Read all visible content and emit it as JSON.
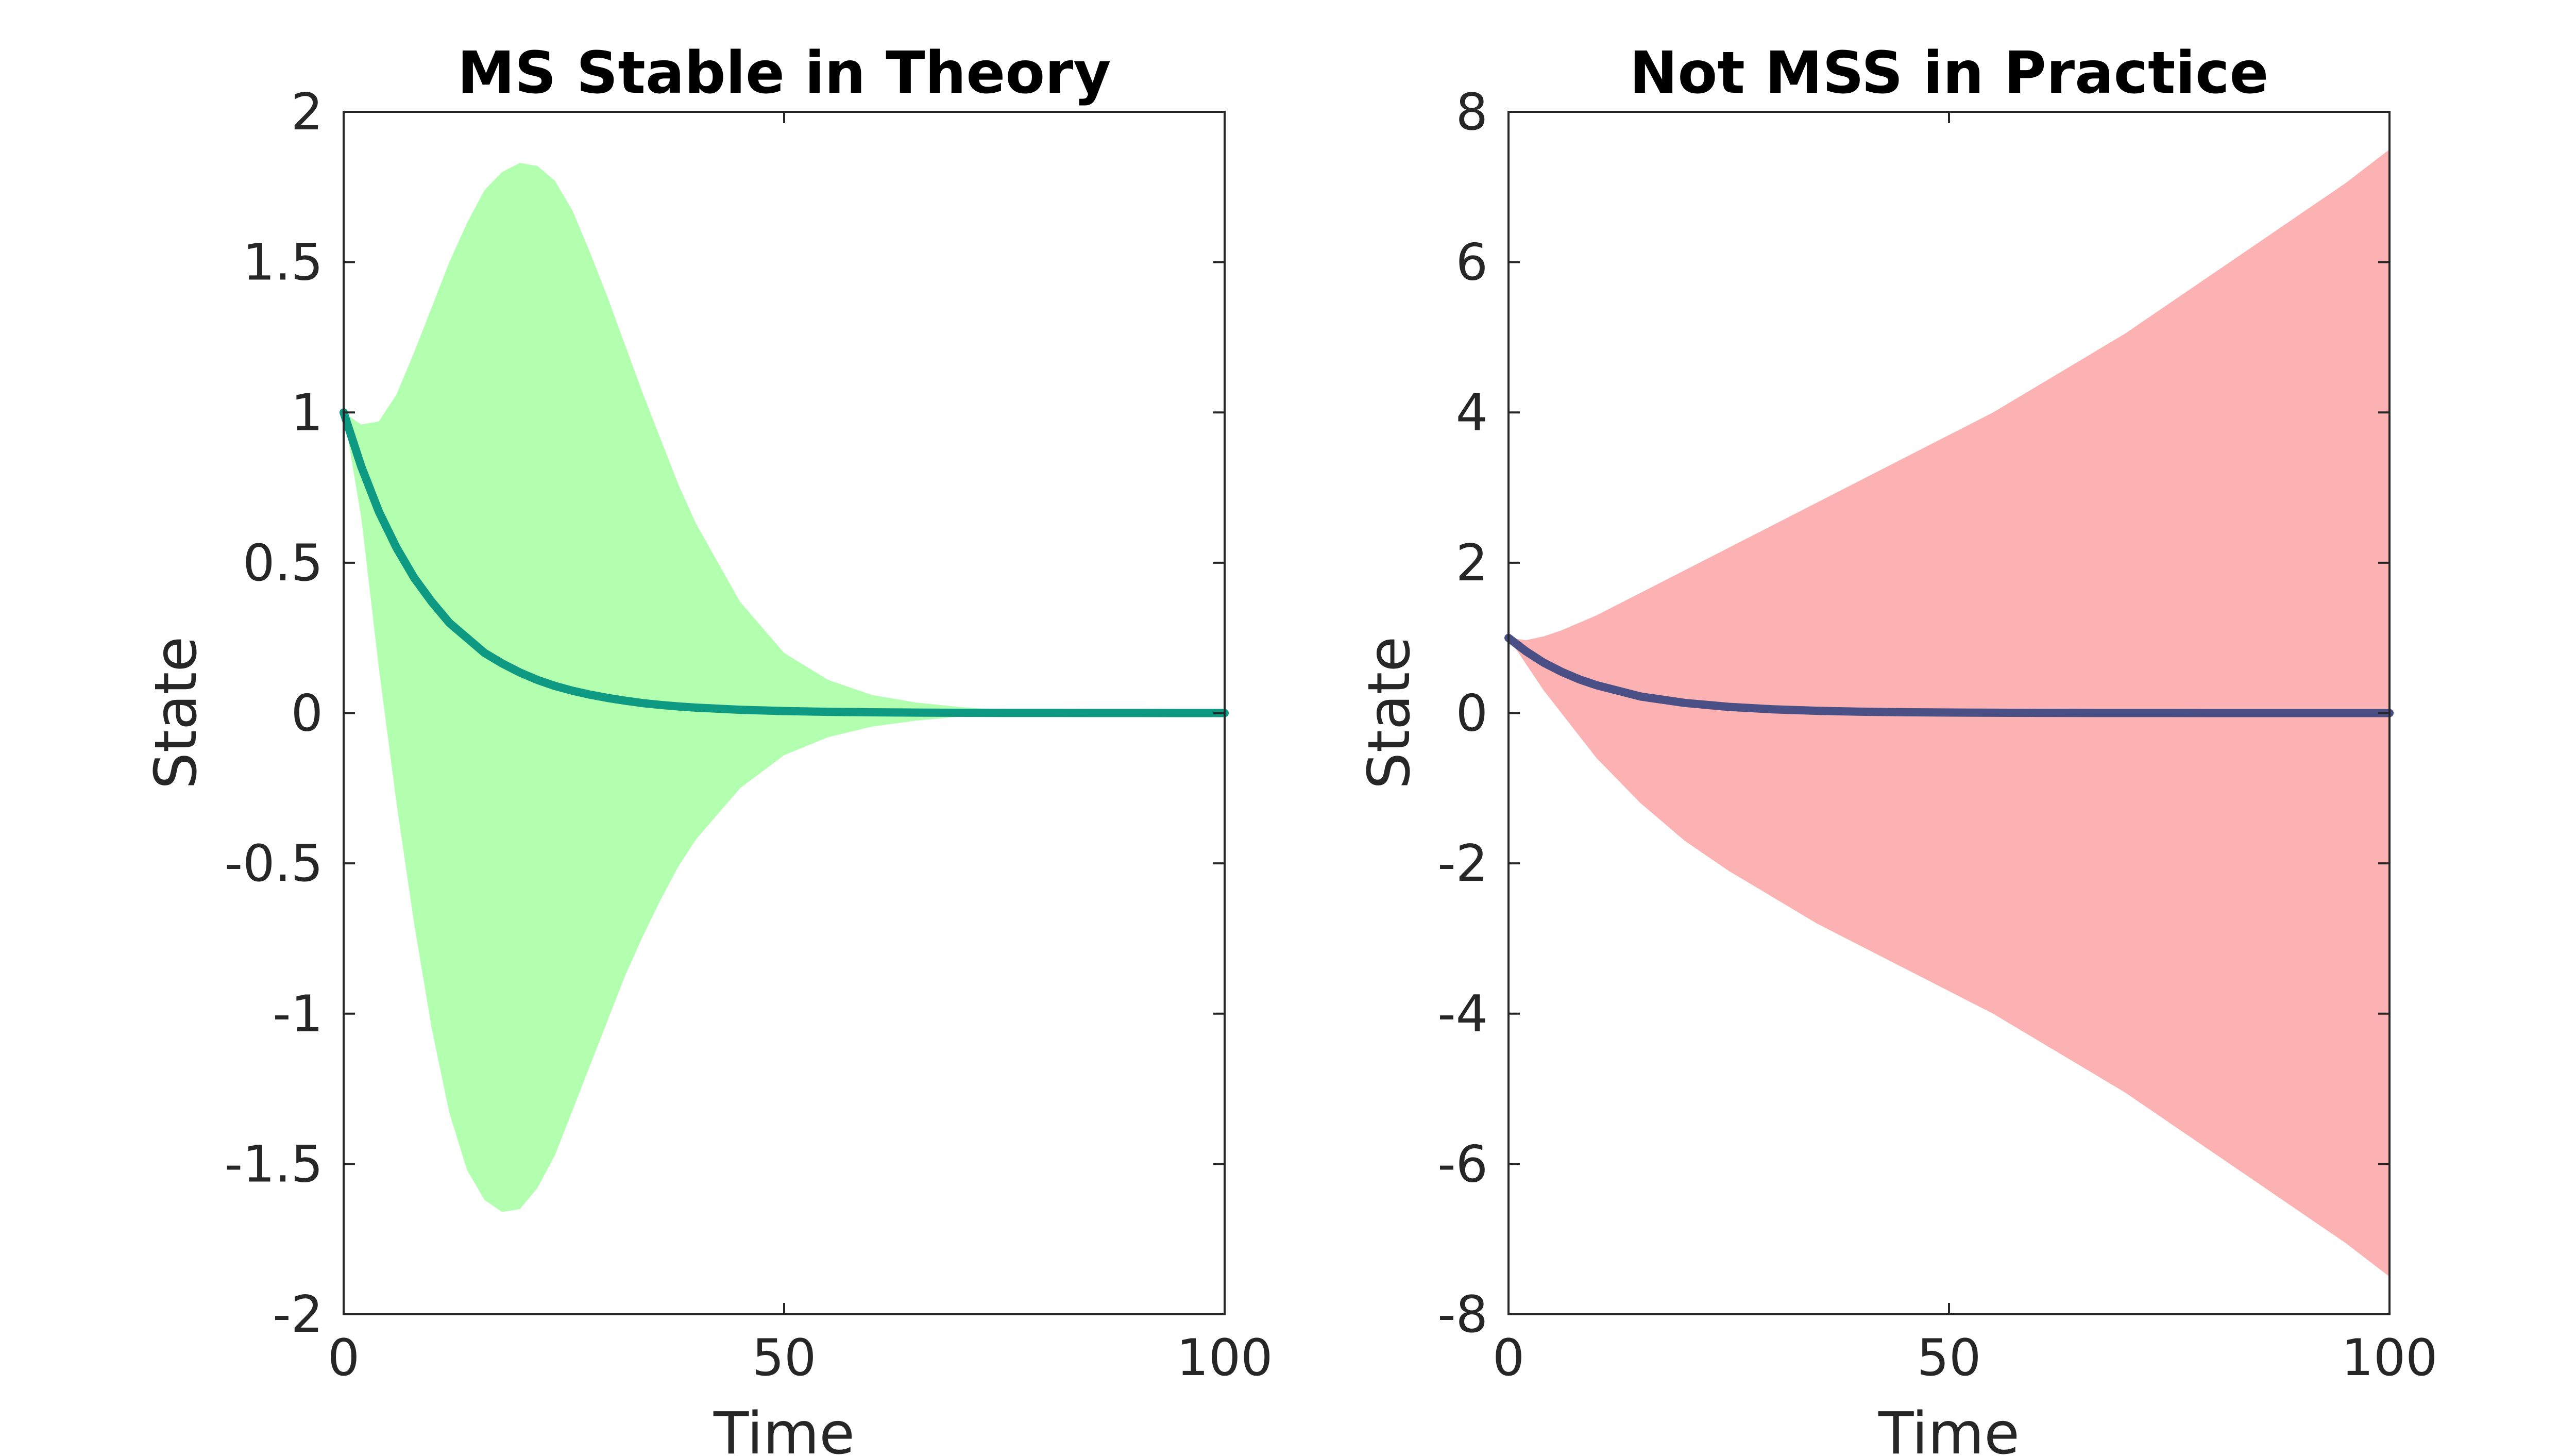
{
  "chart_data": [
    {
      "type": "area",
      "title": "MS Stable in Theory",
      "xlabel": "Time",
      "ylabel": "State",
      "xlim": [
        0,
        100
      ],
      "ylim": [
        -2,
        2
      ],
      "xticks": [
        0,
        50,
        100
      ],
      "xtick_labels": [
        "0",
        "50",
        "100"
      ],
      "yticks": [
        2,
        1.5,
        1,
        0.5,
        0,
        -0.5,
        -1,
        -1.5,
        -2
      ],
      "ytick_labels": [
        "2",
        "1.5",
        "1",
        "0.5",
        "0",
        "-0.5",
        "-1",
        "-1.5",
        "-2"
      ],
      "grid": false,
      "band_color": "#b3ffb0",
      "line_color": "#0e9a82",
      "x": [
        0,
        2,
        4,
        6,
        8,
        10,
        12,
        14,
        16,
        18,
        20,
        22,
        24,
        26,
        28,
        30,
        32,
        34,
        36,
        38,
        40,
        45,
        50,
        55,
        60,
        65,
        70,
        75,
        80,
        85,
        90,
        95,
        100
      ],
      "band_upper": [
        1.0,
        0.96,
        0.97,
        1.06,
        1.2,
        1.35,
        1.5,
        1.63,
        1.74,
        1.8,
        1.83,
        1.82,
        1.77,
        1.67,
        1.53,
        1.38,
        1.22,
        1.06,
        0.91,
        0.76,
        0.63,
        0.37,
        0.2,
        0.11,
        0.06,
        0.035,
        0.02,
        0.01,
        0.005,
        0.002,
        0.0,
        0.0,
        0.0
      ],
      "band_lower": [
        1.0,
        0.65,
        0.15,
        -0.3,
        -0.7,
        -1.05,
        -1.33,
        -1.52,
        -1.62,
        -1.66,
        -1.65,
        -1.58,
        -1.47,
        -1.32,
        -1.17,
        -1.02,
        -0.87,
        -0.74,
        -0.62,
        -0.51,
        -0.42,
        -0.25,
        -0.14,
        -0.08,
        -0.045,
        -0.025,
        -0.012,
        -0.006,
        -0.002,
        0.0,
        0.0,
        0.0,
        0.0
      ],
      "mean_line": [
        1.0,
        0.82,
        0.67,
        0.55,
        0.45,
        0.37,
        0.3,
        0.25,
        0.2,
        0.165,
        0.135,
        0.11,
        0.09,
        0.074,
        0.061,
        0.05,
        0.041,
        0.033,
        0.027,
        0.022,
        0.018,
        0.011,
        0.0067,
        0.0041,
        0.0025,
        0.0015,
        0.0009,
        0.0006,
        0.0003,
        0.0002,
        0.0001,
        0.0,
        0.0
      ]
    },
    {
      "type": "area",
      "title": "Not MSS in Practice",
      "xlabel": "Time",
      "ylabel": "State",
      "xlim": [
        0,
        100
      ],
      "ylim": [
        -8,
        8
      ],
      "xticks": [
        0,
        50,
        100
      ],
      "xtick_labels": [
        "0",
        "50",
        "100"
      ],
      "yticks": [
        8,
        6,
        4,
        2,
        0,
        -2,
        -4,
        -6,
        -8
      ],
      "ytick_labels": [
        "8",
        "6",
        "4",
        "2",
        "0",
        "-2",
        "-4",
        "-6",
        "-8"
      ],
      "grid": false,
      "band_color": "#fcb2b2",
      "line_color": "#4a4f86",
      "x": [
        0,
        2,
        4,
        6,
        8,
        10,
        15,
        20,
        25,
        30,
        35,
        40,
        45,
        50,
        55,
        60,
        65,
        70,
        75,
        80,
        85,
        90,
        95,
        100
      ],
      "band_upper": [
        1.0,
        0.97,
        1.02,
        1.1,
        1.2,
        1.3,
        1.6,
        1.9,
        2.2,
        2.5,
        2.8,
        3.1,
        3.4,
        3.7,
        4.0,
        4.35,
        4.7,
        5.05,
        5.45,
        5.85,
        6.25,
        6.65,
        7.05,
        7.5
      ],
      "band_lower": [
        1.0,
        0.65,
        0.3,
        0.0,
        -0.3,
        -0.6,
        -1.2,
        -1.7,
        -2.1,
        -2.45,
        -2.8,
        -3.1,
        -3.4,
        -3.7,
        -4.0,
        -4.35,
        -4.7,
        -5.05,
        -5.45,
        -5.85,
        -6.25,
        -6.65,
        -7.05,
        -7.5
      ],
      "mean_line": [
        1.0,
        0.82,
        0.67,
        0.55,
        0.45,
        0.37,
        0.22,
        0.135,
        0.082,
        0.05,
        0.03,
        0.018,
        0.011,
        0.0067,
        0.004,
        0.0025,
        0.0015,
        0.0009,
        0.0006,
        0.0003,
        0.0002,
        0.0001,
        0.0,
        0.0
      ]
    }
  ]
}
